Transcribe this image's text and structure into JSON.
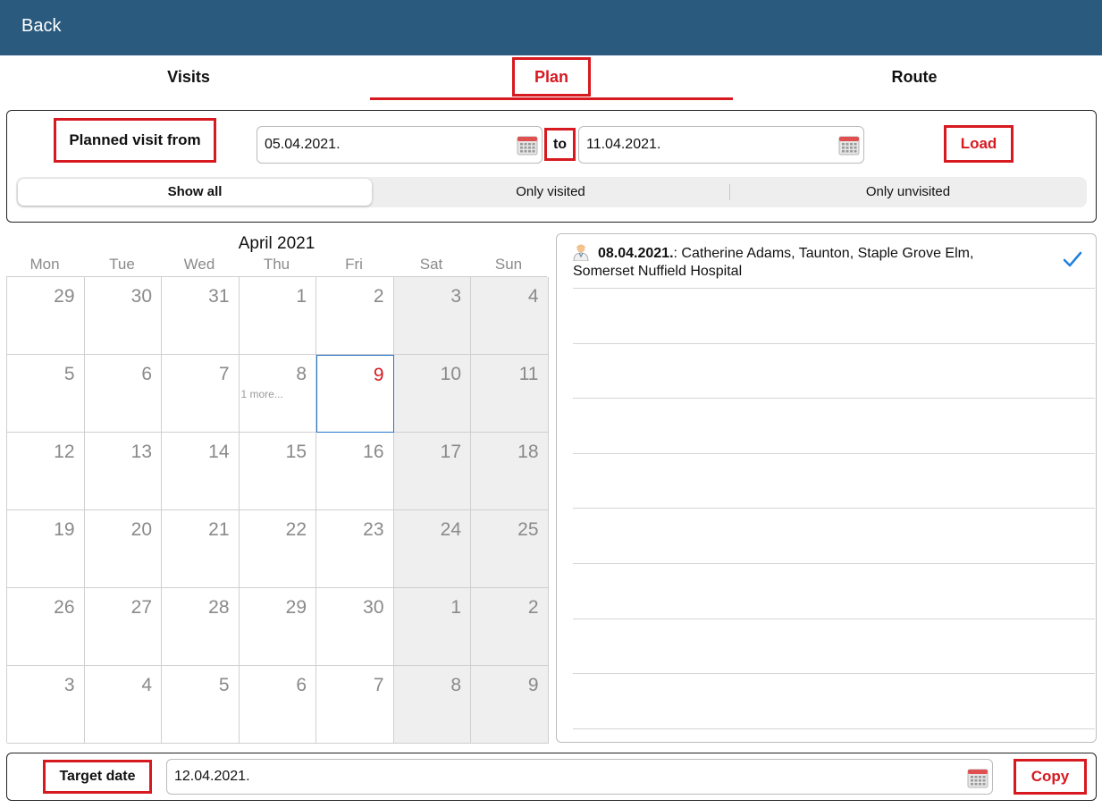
{
  "header": {
    "back_label": "Back",
    "bar_color": "#2a5a7e"
  },
  "tabs": [
    {
      "label": "Visits"
    },
    {
      "label": "Plan",
      "active": true
    },
    {
      "label": "Route"
    }
  ],
  "filter": {
    "planned_label": "Planned visit  from",
    "from_date": "05.04.2021.",
    "to_label": "to",
    "to_date": "11.04.2021.",
    "load_label": "Load",
    "calendar_icon": "calendar-icon",
    "segments": [
      {
        "label": "Show all",
        "selected": true
      },
      {
        "label": "Only visited"
      },
      {
        "label": "Only unvisited"
      }
    ]
  },
  "calendar": {
    "month_title": "April 2021",
    "weekdays": [
      "Mon",
      "Tue",
      "Wed",
      "Thu",
      "Fri",
      "Sat",
      "Sun"
    ],
    "weeks": [
      [
        "29",
        "30",
        "31",
        "1",
        "2",
        "3",
        "4"
      ],
      [
        "5",
        "6",
        "7",
        "8",
        "9",
        "10",
        "11"
      ],
      [
        "12",
        "13",
        "14",
        "15",
        "16",
        "17",
        "18"
      ],
      [
        "19",
        "20",
        "21",
        "22",
        "23",
        "24",
        "25"
      ],
      [
        "26",
        "27",
        "28",
        "29",
        "30",
        "1",
        "2"
      ],
      [
        "3",
        "4",
        "5",
        "6",
        "7",
        "8",
        "9"
      ]
    ],
    "selected_day": "9",
    "more_text": "1 more...",
    "selected_color": "#d71920"
  },
  "visits": [
    {
      "date": "08.04.2021.",
      "details": ": Catherine Adams, Taunton, Staple Grove Elm, Somerset Nuffield Hospital",
      "icon": "doctor-icon",
      "status_icon": "check-icon"
    }
  ],
  "target": {
    "label": "Target date",
    "date": "12.04.2021.",
    "copy_label": "Copy"
  },
  "accent_color": "#d71920"
}
